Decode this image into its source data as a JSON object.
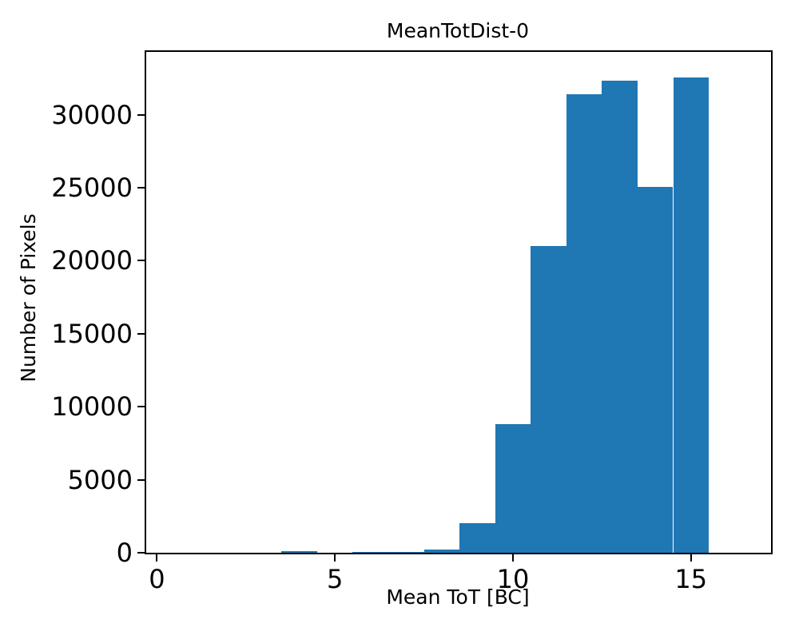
{
  "figure": {
    "background_color": "#ffffff",
    "text_color": "#000000"
  },
  "chart_data": {
    "type": "bar",
    "subtype": "histogram",
    "title": "MeanTotDist-0",
    "xlabel": "Mean ToT [BC]",
    "ylabel": "Number of Pixels",
    "bin_centers": [
      0,
      1,
      2,
      3,
      4,
      5,
      6,
      7,
      8,
      9,
      10,
      11,
      12,
      13,
      14,
      15
    ],
    "bin_width": 1,
    "values": [
      0,
      0,
      0,
      0,
      90,
      0,
      70,
      70,
      200,
      2000,
      8800,
      21000,
      31400,
      32350,
      25050,
      32550
    ],
    "xticks": [
      0,
      5,
      10,
      15
    ],
    "xtick_labels": [
      "0",
      "5",
      "10",
      "15"
    ],
    "yticks": [
      0,
      5000,
      10000,
      15000,
      20000,
      25000,
      30000
    ],
    "ytick_labels": [
      "0",
      "5000",
      "10000",
      "15000",
      "20000",
      "25000",
      "30000"
    ],
    "xlim": [
      -0.3,
      17.25
    ],
    "ylim": [
      0,
      34300
    ],
    "bar_color": "#1f77b4",
    "grid": false,
    "legend_position": "none"
  }
}
